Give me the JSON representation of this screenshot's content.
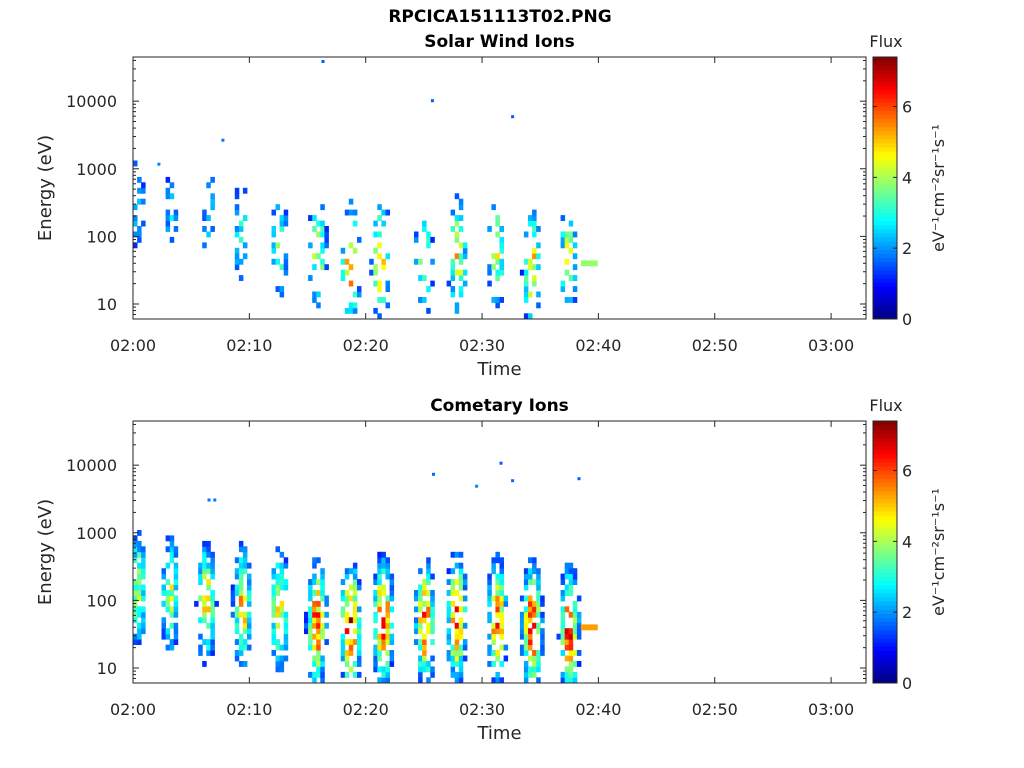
{
  "figure": {
    "title": "RPCICA151113T02.PNG"
  },
  "chart_data": [
    {
      "type": "heatmap",
      "title": "Solar Wind Ions",
      "xlabel": "Time",
      "ylabel": "Energy (eV)",
      "x_tick_labels": [
        "02:00",
        "02:10",
        "02:20",
        "02:30",
        "02:40",
        "02:50",
        "03:00"
      ],
      "x_tick_minutes": [
        0,
        10,
        20,
        30,
        40,
        50,
        60
      ],
      "xlim_minutes": [
        0,
        63
      ],
      "y_scale": "log",
      "ylim": [
        6,
        45000
      ],
      "y_tick_values": [
        10,
        100,
        1000,
        10000
      ],
      "y_tick_labels": [
        "10",
        "100",
        "1000",
        "10000"
      ],
      "colorbar": {
        "title": "Flux",
        "label": "eV⁻¹cm⁻²sr⁻¹s⁻¹",
        "range": [
          0,
          7.4
        ],
        "ticks": [
          0,
          2,
          4,
          6
        ],
        "colormap": "jet"
      },
      "bursts": [
        {
          "t": 0.4,
          "e": 300,
          "amp": 2.6
        },
        {
          "t": 3.3,
          "e": 250,
          "amp": 2.4
        },
        {
          "t": 6.5,
          "e": 200,
          "amp": 2.6
        },
        {
          "t": 9.3,
          "e": 120,
          "amp": 3.1
        },
        {
          "t": 12.6,
          "e": 80,
          "amp": 3.5
        },
        {
          "t": 15.9,
          "e": 60,
          "amp": 4.3
        },
        {
          "t": 18.7,
          "e": 40,
          "amp": 5.4
        },
        {
          "t": 21.3,
          "e": 45,
          "amp": 5.0
        },
        {
          "t": 25.0,
          "e": 40,
          "amp": 4.2
        },
        {
          "t": 27.9,
          "e": 50,
          "amp": 4.7
        },
        {
          "t": 31.2,
          "e": 60,
          "amp": 4.2
        },
        {
          "t": 34.3,
          "e": 35,
          "amp": 5.1
        },
        {
          "t": 37.4,
          "e": 45,
          "amp": 4.2
        }
      ],
      "isolated_points": [
        {
          "t": 16.2,
          "e": 38000,
          "v": 1.6
        },
        {
          "t": 25.6,
          "e": 10000,
          "v": 1.6
        },
        {
          "t": 32.5,
          "e": 5800,
          "v": 1.6
        },
        {
          "t": 7.6,
          "e": 2600,
          "v": 1.8
        },
        {
          "t": 2.1,
          "e": 1150,
          "v": 1.9
        }
      ],
      "data_end_minutes": 39.7,
      "density": 0.34,
      "seed": 11
    },
    {
      "type": "heatmap",
      "title": "Cometary Ions",
      "xlabel": "Time",
      "ylabel": "Energy (eV)",
      "x_tick_labels": [
        "02:00",
        "02:10",
        "02:20",
        "02:30",
        "02:40",
        "02:50",
        "03:00"
      ],
      "x_tick_minutes": [
        0,
        10,
        20,
        30,
        40,
        50,
        60
      ],
      "xlim_minutes": [
        0,
        63
      ],
      "y_scale": "log",
      "ylim": [
        6,
        45000
      ],
      "y_tick_values": [
        10,
        100,
        1000,
        10000
      ],
      "y_tick_labels": [
        "10",
        "100",
        "1000",
        "10000"
      ],
      "colorbar": {
        "title": "Flux",
        "label": "eV⁻¹cm⁻²sr⁻¹s⁻¹",
        "range": [
          0,
          7.4
        ],
        "ticks": [
          0,
          2,
          4,
          6
        ],
        "colormap": "jet"
      },
      "bursts": [
        {
          "t": 0.4,
          "e": 150,
          "amp": 4.1
        },
        {
          "t": 3.2,
          "e": 120,
          "amp": 4.3
        },
        {
          "t": 6.3,
          "e": 90,
          "amp": 5.0
        },
        {
          "t": 9.4,
          "e": 80,
          "amp": 5.0
        },
        {
          "t": 12.6,
          "e": 70,
          "amp": 4.9
        },
        {
          "t": 15.8,
          "e": 45,
          "amp": 6.0
        },
        {
          "t": 18.7,
          "e": 40,
          "amp": 6.9
        },
        {
          "t": 21.5,
          "e": 50,
          "amp": 6.5
        },
        {
          "t": 25.1,
          "e": 45,
          "amp": 5.9
        },
        {
          "t": 27.8,
          "e": 55,
          "amp": 6.3
        },
        {
          "t": 31.3,
          "e": 50,
          "amp": 5.8
        },
        {
          "t": 34.3,
          "e": 40,
          "amp": 6.5
        },
        {
          "t": 37.5,
          "e": 35,
          "amp": 6.2
        }
      ],
      "isolated_points": [
        {
          "t": 25.7,
          "e": 7200,
          "v": 1.7
        },
        {
          "t": 31.5,
          "e": 10500,
          "v": 1.6
        },
        {
          "t": 32.5,
          "e": 5800,
          "v": 1.7
        },
        {
          "t": 38.2,
          "e": 6200,
          "v": 1.6
        },
        {
          "t": 29.4,
          "e": 4800,
          "v": 1.9
        },
        {
          "t": 6.4,
          "e": 3000,
          "v": 1.8
        },
        {
          "t": 6.9,
          "e": 3000,
          "v": 1.8
        }
      ],
      "data_end_minutes": 39.7,
      "density": 0.66,
      "seed": 23
    }
  ]
}
